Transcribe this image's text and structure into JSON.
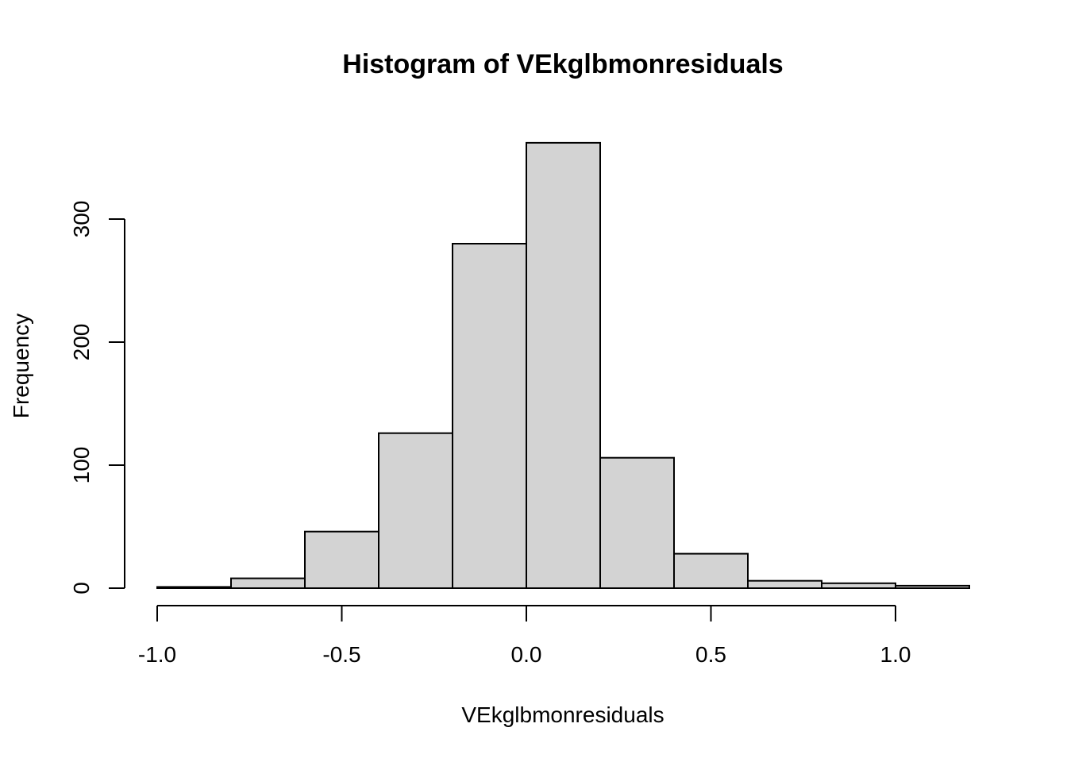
{
  "chart_data": {
    "type": "bar",
    "subtype": "histogram",
    "title": "Histogram of VEkglbmonresiduals",
    "xlabel": "VEkglbmonresiduals",
    "ylabel": "Frequency",
    "bins": [
      {
        "from": -1.0,
        "to": -0.8,
        "count": 1
      },
      {
        "from": -0.8,
        "to": -0.6,
        "count": 8
      },
      {
        "from": -0.6,
        "to": -0.4,
        "count": 46
      },
      {
        "from": -0.4,
        "to": -0.2,
        "count": 126
      },
      {
        "from": -0.2,
        "to": 0.0,
        "count": 280
      },
      {
        "from": 0.0,
        "to": 0.2,
        "count": 362
      },
      {
        "from": 0.2,
        "to": 0.4,
        "count": 106
      },
      {
        "from": 0.4,
        "to": 0.6,
        "count": 28
      },
      {
        "from": 0.6,
        "to": 0.8,
        "count": 6
      },
      {
        "from": 0.8,
        "to": 1.0,
        "count": 4
      },
      {
        "from": 1.0,
        "to": 1.2,
        "count": 2
      }
    ],
    "xlim": [
      -1.0,
      1.2
    ],
    "ylim": [
      0,
      362
    ],
    "xticks": [
      -1.0,
      -0.5,
      0.0,
      0.5,
      1.0
    ],
    "xtick_labels": [
      "-1.0",
      "-0.5",
      "0.0",
      "0.5",
      "1.0"
    ],
    "yticks": [
      0,
      100,
      200,
      300
    ],
    "ytick_labels": [
      "0",
      "100",
      "200",
      "300"
    ],
    "bar_fill": "#d3d3d3",
    "bar_stroke": "#000000",
    "grid": false,
    "legend": "none"
  }
}
